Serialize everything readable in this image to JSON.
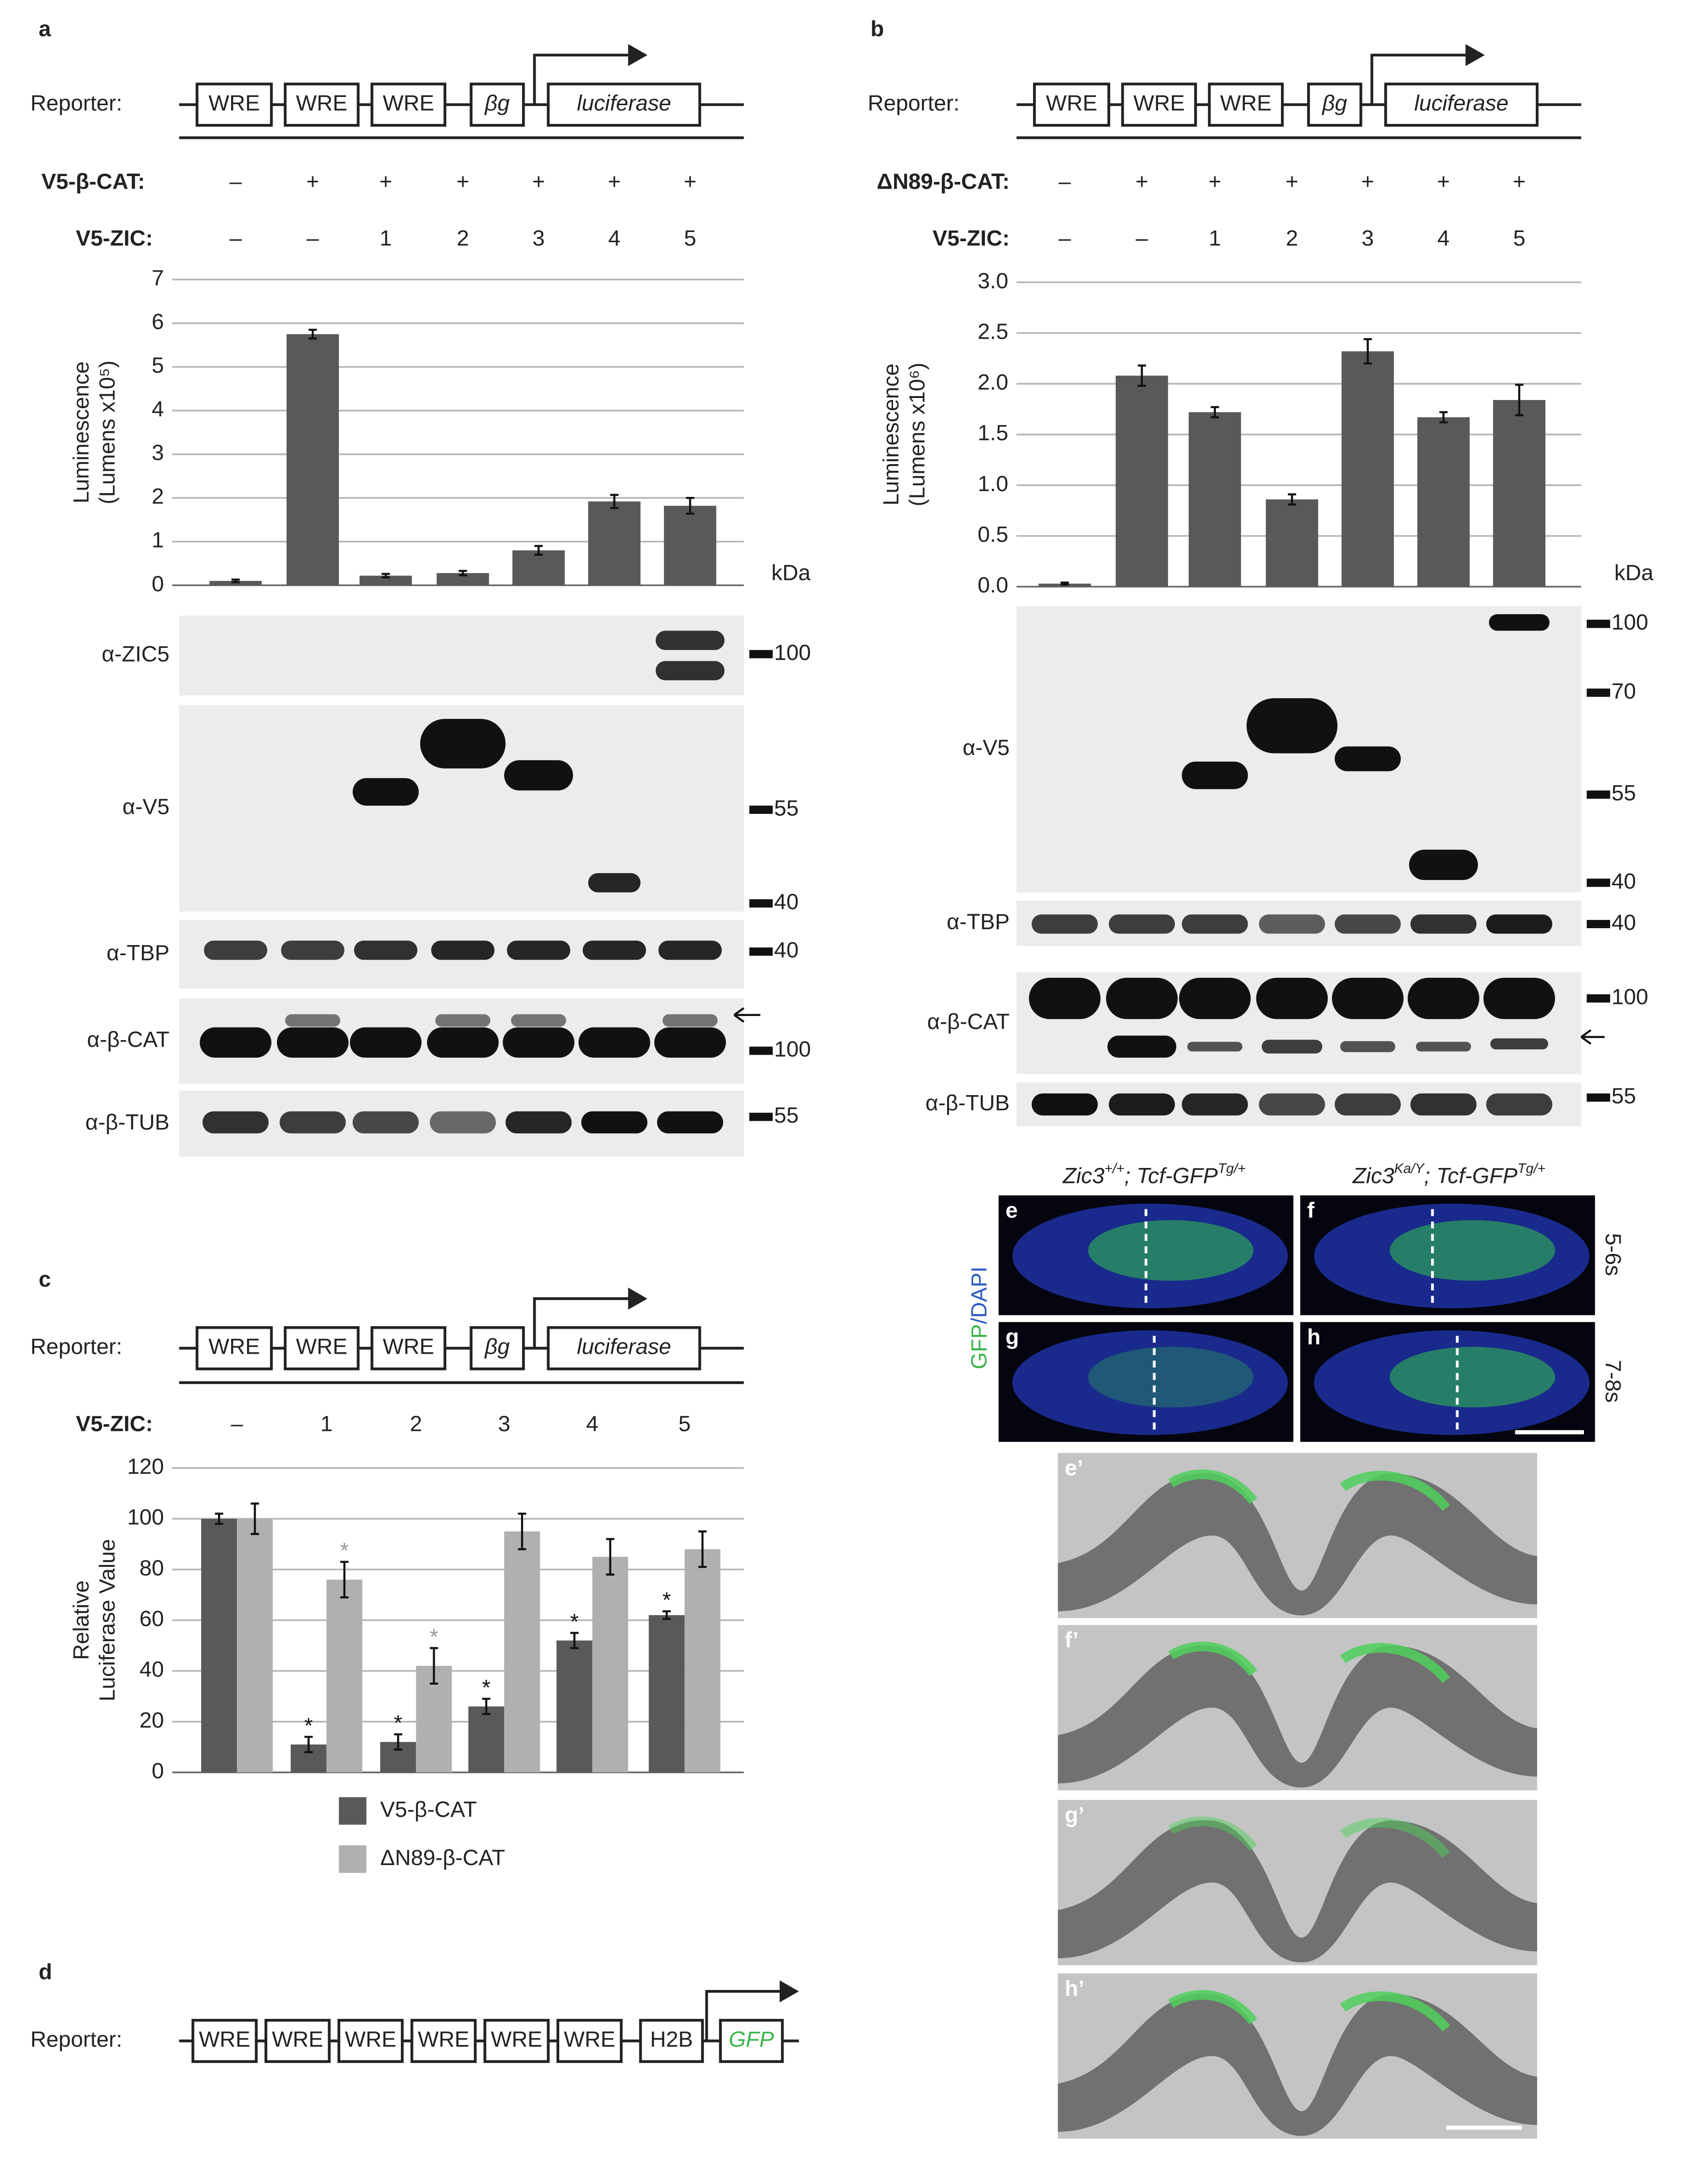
{
  "panels": {
    "a": {
      "letter": "a",
      "reporter": {
        "label": "Reporter:",
        "elements": [
          "WRE",
          "WRE",
          "WRE",
          "βg",
          "luciferase"
        ]
      },
      "rows": [
        {
          "label": "V5-β-CAT:",
          "values": [
            "–",
            "+",
            "+",
            "+",
            "+",
            "+",
            "+"
          ]
        },
        {
          "label": "V5-ZIC:"
        }
      ],
      "kda": "kDa",
      "blots": [
        "α-ZIC5",
        "α-V5",
        "α-TBP",
        "α-β-CAT",
        "α-β-TUB"
      ],
      "markers": [
        100,
        55,
        40,
        40,
        100,
        55
      ]
    },
    "b": {
      "letter": "b",
      "reporter": {
        "label": "Reporter:",
        "elements": [
          "WRE",
          "WRE",
          "WRE",
          "βg",
          "luciferase"
        ]
      },
      "rows": [
        {
          "label": "ΔN89-β-CAT:",
          "values": [
            "–",
            "+",
            "+",
            "+",
            "+",
            "+",
            "+"
          ]
        },
        {
          "label": "V5-ZIC:"
        }
      ],
      "kda": "kDa",
      "blots": [
        "α-V5",
        "α-TBP",
        "α-β-CAT",
        "α-β-TUB"
      ],
      "markers": [
        100,
        70,
        55,
        40,
        40,
        100,
        55
      ]
    },
    "c": {
      "letter": "c",
      "reporter": {
        "label": "Reporter:",
        "elements": [
          "WRE",
          "WRE",
          "WRE",
          "βg",
          "luciferase"
        ]
      },
      "row_label": "V5-ZIC:"
    },
    "d": {
      "letter": "d",
      "reporter": {
        "label": "Reporter:",
        "elements": [
          "WRE",
          "WRE",
          "WRE",
          "WRE",
          "WRE",
          "WRE",
          "H2B",
          "GFP"
        ]
      }
    },
    "imaging": {
      "headers": [
        [
          "Zic3",
          "+/+",
          "; Tcf-GFP",
          "Tg/+"
        ],
        [
          "Zic3",
          "Ka/Y",
          "; Tcf-GFP",
          "Tg/+"
        ]
      ],
      "stain": [
        "GFP",
        "/DAPI"
      ],
      "stages": [
        "5-6s",
        "7-8s"
      ],
      "panels": [
        "e",
        "f",
        "g",
        "h"
      ],
      "sections": [
        "e’",
        "f’",
        "g’",
        "h’"
      ]
    }
  },
  "chart_data": [
    {
      "type": "bar",
      "categories": [
        "–",
        "–",
        "1",
        "2",
        "3",
        "4",
        "5"
      ],
      "values": [
        0.1,
        5.75,
        0.22,
        0.28,
        0.8,
        1.92,
        1.82
      ],
      "errors": [
        0.03,
        0.1,
        0.04,
        0.05,
        0.1,
        0.15,
        0.18
      ],
      "color": "#595959",
      "ylabel": [
        "Luminescence",
        "(Lumens x10⁵)"
      ],
      "ylim": [
        0,
        7
      ],
      "yticks": [
        0,
        1,
        2,
        3,
        4,
        5,
        6,
        7
      ],
      "grid": true
    },
    {
      "type": "bar",
      "categories": [
        "–",
        "–",
        "1",
        "2",
        "3",
        "4",
        "5"
      ],
      "values": [
        0.03,
        2.08,
        1.72,
        0.86,
        2.32,
        1.67,
        1.84
      ],
      "errors": [
        0.01,
        0.1,
        0.05,
        0.05,
        0.12,
        0.05,
        0.15
      ],
      "color": "#595959",
      "ylabel": [
        "Luminescence",
        "(Lumens x10⁶)"
      ],
      "ylim": [
        0,
        3
      ],
      "yticks": [
        {
          "value": 0,
          "label": "0.0"
        },
        0.5,
        {
          "value": 1,
          "label": "1.0"
        },
        1.5,
        {
          "value": 2,
          "label": "2.0"
        },
        2.5,
        {
          "value": 3,
          "label": "3.0"
        }
      ],
      "grid": true
    },
    {
      "type": "grouped_bar",
      "categories": [
        "–",
        "1",
        "2",
        "3",
        "4",
        "5"
      ],
      "series": [
        {
          "name": "V5-β-CAT",
          "color": "#595959",
          "values": [
            100,
            11,
            12,
            26,
            52,
            62
          ],
          "errors": [
            2,
            3,
            3,
            3,
            3,
            1.5
          ],
          "star_labels": [
            null,
            "*",
            "*",
            "*",
            "*",
            "*"
          ]
        },
        {
          "name": "ΔN89-β-CAT",
          "color": "#b0b0b0",
          "values": [
            100,
            76,
            42,
            95,
            85,
            88
          ],
          "errors": [
            6,
            7,
            7,
            7,
            7,
            7
          ],
          "star_labels": [
            null,
            "*",
            "*",
            null,
            null,
            null
          ]
        }
      ],
      "ylabel": [
        "Relative",
        "Luciferase Value"
      ],
      "ylim": [
        0,
        120
      ],
      "yticks": [
        0,
        20,
        40,
        60,
        80,
        100,
        120
      ],
      "grid": true
    }
  ]
}
